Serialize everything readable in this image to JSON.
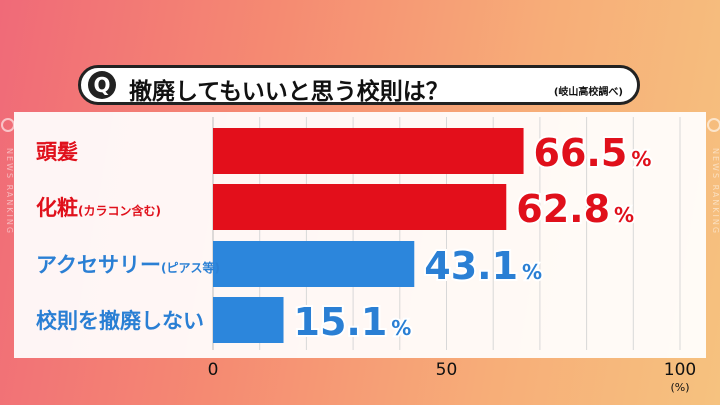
{
  "header": {
    "q_badge": "Q",
    "title": "撤廃してもいいと思う校則は？",
    "note": "(岐山高校調べ)"
  },
  "decor": {
    "side_text": "NEWS RANKING"
  },
  "chart_data": {
    "type": "bar",
    "orientation": "horizontal",
    "categories": [
      {
        "main": "頭髪",
        "sub": ""
      },
      {
        "main": "化粧",
        "sub": "(カラコン含む)"
      },
      {
        "main": "アクセサリー",
        "sub": "(ピアス等)"
      },
      {
        "main": "校則を撤廃しない",
        "sub": ""
      }
    ],
    "values": [
      66.5,
      62.8,
      43.1,
      15.1
    ],
    "value_unit": "%",
    "bar_colors": [
      "#e30f1b",
      "#e30f1b",
      "#2c86dc",
      "#2c86dc"
    ],
    "label_colors": [
      "#e0101b",
      "#e0101b",
      "#2a7fd4",
      "#2a7fd4"
    ],
    "xlim": [
      0,
      100
    ],
    "xticks": [
      "0",
      "50",
      "100"
    ],
    "x_unit": "(%)",
    "grid": true
  }
}
